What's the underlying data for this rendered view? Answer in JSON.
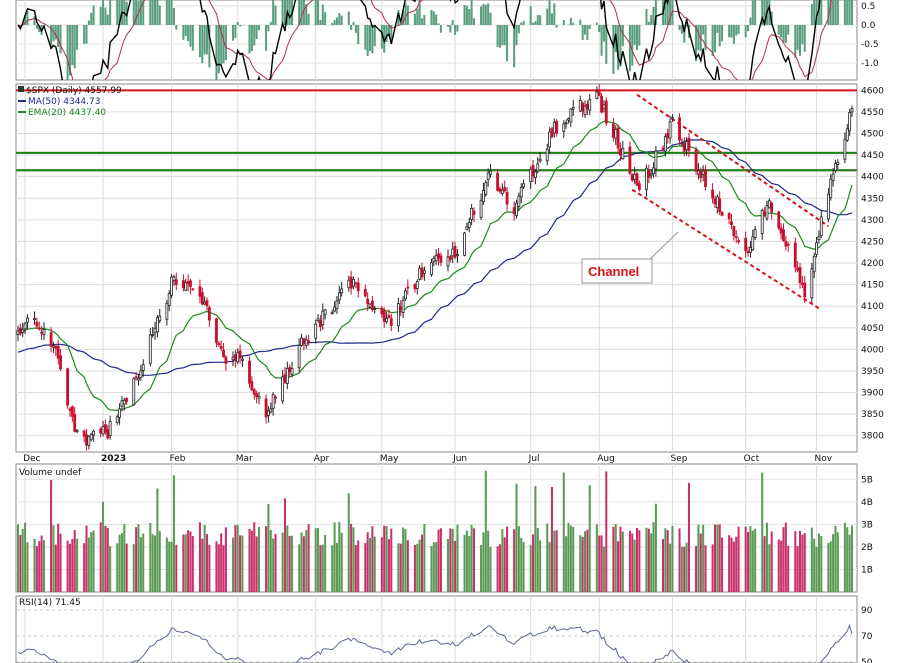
{
  "chart_data": {
    "type": "candlestick",
    "panels": {
      "price": {
        "symbol_label": "$SPX (Daily) 4557.99",
        "legend": [
          {
            "label": "MA(50) 4344.73",
            "color": "#1f2a8a"
          },
          {
            "label": "EMA(20) 4437.40",
            "color": "#1a8a1a"
          }
        ],
        "y_ticks": [
          3800,
          3850,
          3900,
          3950,
          4000,
          4050,
          4100,
          4150,
          4200,
          4250,
          4300,
          4350,
          4400,
          4450,
          4500,
          4550,
          4600
        ],
        "ylim": [
          3760,
          4610
        ],
        "horizontal_lines": [
          {
            "value": 4600,
            "color": "#d4141a"
          },
          {
            "value": 4455,
            "color": "#d4141a"
          },
          {
            "value": 4415,
            "color": "#d4141a"
          },
          {
            "value": 4455,
            "color": "#1a8a1a"
          },
          {
            "value": 4415,
            "color": "#1a8a1a"
          }
        ],
        "channel_lines": [
          {
            "from": [
              "2023-08-17",
              4590
            ],
            "to": [
              "2023-11-06",
              4285
            ]
          },
          {
            "from": [
              "2023-08-15",
              4370
            ],
            "to": [
              "2023-11-02",
              4095
            ]
          }
        ],
        "annotation": "Channel",
        "key_closes": [
          [
            "2022-11-29",
            4030
          ],
          [
            "2022-12-01",
            4075
          ],
          [
            "2022-12-13",
            4020
          ],
          [
            "2022-12-22",
            3820
          ],
          [
            "2022-12-28",
            3790
          ],
          [
            "2023-01-05",
            3810
          ],
          [
            "2023-01-20",
            3970
          ],
          [
            "2023-02-02",
            4170
          ],
          [
            "2023-02-16",
            4090
          ],
          [
            "2023-02-24",
            3970
          ],
          [
            "2023-03-02",
            3980
          ],
          [
            "2023-03-13",
            3850
          ],
          [
            "2023-03-29",
            4020
          ],
          [
            "2023-04-18",
            4155
          ],
          [
            "2023-05-04",
            4060
          ],
          [
            "2023-05-19",
            4190
          ],
          [
            "2023-06-01",
            4220
          ],
          [
            "2023-06-16",
            4410
          ],
          [
            "2023-06-26",
            4330
          ],
          [
            "2023-07-13",
            4510
          ],
          [
            "2023-07-31",
            4590
          ],
          [
            "2023-08-18",
            4370
          ],
          [
            "2023-09-01",
            4520
          ],
          [
            "2023-09-21",
            4330
          ],
          [
            "2023-10-03",
            4230
          ],
          [
            "2023-10-12",
            4350
          ],
          [
            "2023-10-27",
            4120
          ],
          [
            "2023-11-06",
            4365
          ],
          [
            "2023-11-16",
            4558
          ]
        ],
        "series_names": [
          "$SPX (Daily)",
          "MA(50)",
          "EMA(20)"
        ]
      },
      "oscillator": {
        "y_ticks": [
          0.5,
          0.0,
          -0.5,
          -1.0
        ],
        "histogram_color": "#5a9e80",
        "line_colors": [
          "#000000",
          "#b03050"
        ]
      },
      "volume": {
        "label": "Volume undef",
        "y_ticks": [
          "5B",
          "4B",
          "3B",
          "2B",
          "1B"
        ],
        "up_color": "#5a9a55",
        "down_color": "#c8306a"
      },
      "rsi": {
        "label": "RSI(14) 71.45",
        "y_ticks": [
          90,
          70,
          50
        ],
        "value": 71.45,
        "line_color": "#5a6a90"
      }
    },
    "x_labels": [
      "Dec",
      "2023",
      "Feb",
      "Mar",
      "Apr",
      "May",
      "Jun",
      "Jul",
      "Aug",
      "Sep",
      "Oct",
      "Nov"
    ],
    "x_label_dates": [
      "2022-12-01",
      "2023-01-03",
      "2023-02-01",
      "2023-03-01",
      "2023-04-03",
      "2023-05-01",
      "2023-06-01",
      "2023-07-03",
      "2023-08-01",
      "2023-09-01",
      "2023-10-02",
      "2023-11-01"
    ],
    "x_range": [
      "2022-11-28",
      "2023-11-16"
    ],
    "grid": true
  }
}
